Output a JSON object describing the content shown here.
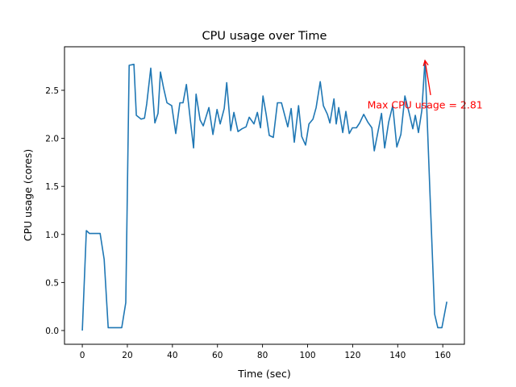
{
  "chart_data": {
    "type": "line",
    "title": "CPU usage over Time",
    "xlabel": "Time (sec)",
    "ylabel": "CPU usage (cores)",
    "xlim": [
      -7.9,
      169.6
    ],
    "ylim": [
      -0.143,
      2.953
    ],
    "xticks": [
      0,
      20,
      40,
      60,
      80,
      100,
      120,
      140,
      160
    ],
    "xtick_labels": [
      "0",
      "20",
      "40",
      "60",
      "80",
      "100",
      "120",
      "140",
      "160"
    ],
    "yticks": [
      0,
      0.5,
      1,
      1.5,
      2,
      2.5
    ],
    "ytick_labels": [
      "0.0",
      "0.5",
      "1.0",
      "1.5",
      "2.0",
      "2.5"
    ],
    "grid": false,
    "line_color": "#1f77b4",
    "series": [
      {
        "name": "CPU usage",
        "x": [
          0,
          1.8,
          3.2,
          7.9,
          9.7,
          11.5,
          17.5,
          19.3,
          20.8,
          22.9,
          24,
          26.1,
          27.6,
          28.6,
          30.4,
          32.2,
          33.6,
          34.7,
          36.1,
          37.6,
          39.7,
          41.5,
          43.3,
          44.7,
          46.2,
          48,
          49.4,
          50.5,
          52.3,
          53.7,
          56.2,
          58,
          59.8,
          61.2,
          63,
          64.1,
          65.9,
          67.3,
          69.1,
          70.9,
          72.7,
          74.1,
          76.2,
          77.7,
          79.1,
          80.2,
          81.6,
          83,
          84.8,
          86.6,
          88.4,
          91.2,
          92.7,
          94.1,
          96,
          97.4,
          99.1,
          100.6,
          102.4,
          103.8,
          105.6,
          107,
          108.8,
          109.9,
          111.7,
          112.7,
          113.8,
          115.6,
          117,
          118.5,
          119.9,
          121.7,
          123.1,
          124.9,
          126.7,
          128.5,
          129.6,
          132.8,
          134.2,
          136,
          137.8,
          139.6,
          141.4,
          143.2,
          145,
          146.7,
          147.8,
          149.2,
          150.7,
          152.1,
          154.3,
          156.4,
          157.8,
          159.6,
          161.8
        ],
        "y": [
          0,
          1.04,
          1.01,
          1.01,
          0.74,
          0.03,
          0.03,
          0.29,
          2.76,
          2.77,
          2.24,
          2.2,
          2.21,
          2.36,
          2.73,
          2.16,
          2.26,
          2.69,
          2.52,
          2.37,
          2.34,
          2.05,
          2.37,
          2.37,
          2.56,
          2.18,
          1.9,
          2.46,
          2.19,
          2.13,
          2.32,
          2.04,
          2.3,
          2.15,
          2.31,
          2.58,
          2.08,
          2.27,
          2.07,
          2.1,
          2.12,
          2.22,
          2.15,
          2.27,
          2.11,
          2.44,
          2.25,
          2.03,
          2.01,
          2.37,
          2.37,
          2.12,
          2.31,
          1.96,
          2.34,
          2.02,
          1.93,
          2.15,
          2.2,
          2.32,
          2.59,
          2.34,
          2.25,
          2.16,
          2.41,
          2.15,
          2.32,
          2.06,
          2.28,
          2.05,
          2.11,
          2.11,
          2.16,
          2.25,
          2.17,
          2.11,
          1.87,
          2.26,
          1.9,
          2.17,
          2.34,
          1.91,
          2.04,
          2.44,
          2.27,
          2.1,
          2.24,
          2.06,
          2.29,
          2.81,
          1.45,
          0.17,
          0.03,
          0.03,
          0.3
        ]
      }
    ],
    "annotations": [
      {
        "text": "Max CPU usage = 2.81",
        "xy": [
          152.1,
          2.81
        ],
        "xytext": [
          126.5,
          2.31
        ],
        "arrow_from": [
          154.6,
          2.45
        ],
        "color": "#ff0000"
      }
    ]
  }
}
